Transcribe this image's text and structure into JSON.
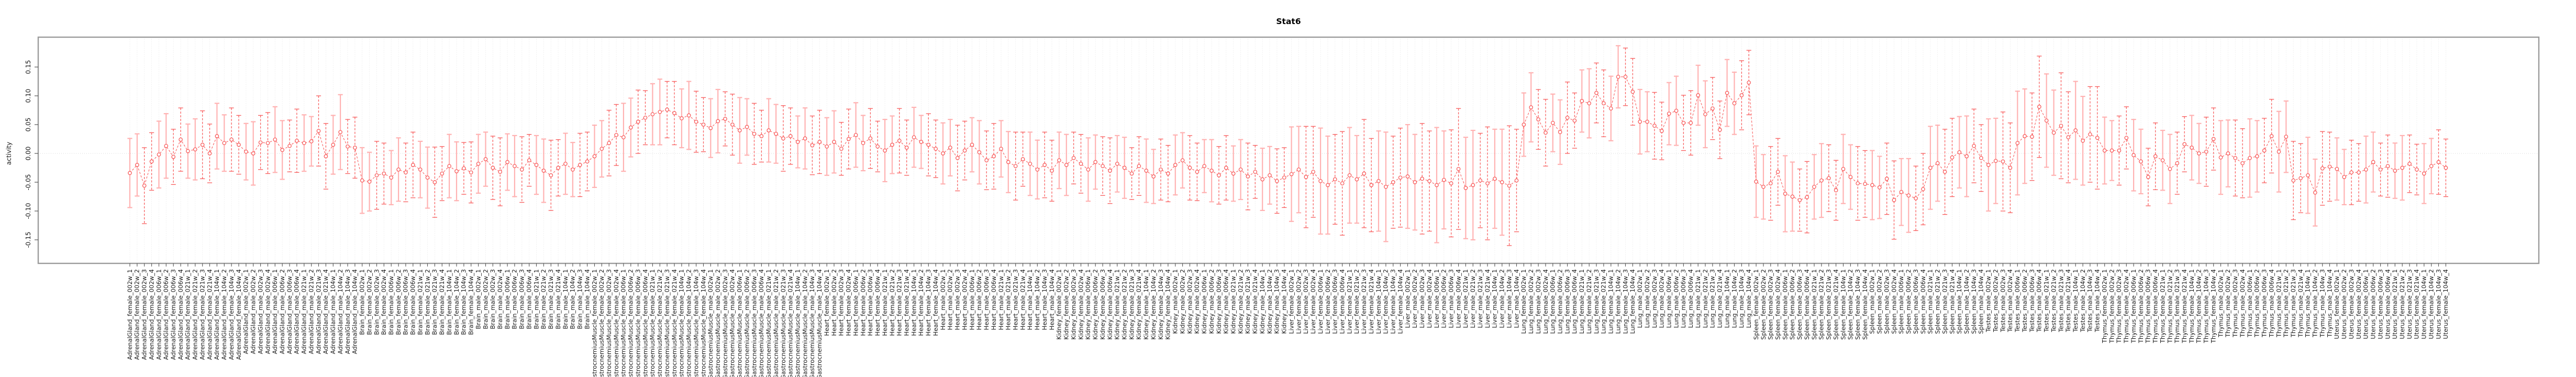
{
  "title": "Stat6",
  "chart_data": {
    "type": "line",
    "subtype": "errorbar-series",
    "title": "Stat6",
    "xlabel": "",
    "ylabel": "activity",
    "yticks": [
      0.15,
      0.1,
      0.05,
      0.0,
      -0.05,
      -0.1,
      -0.15
    ],
    "ylim": [
      -0.19,
      0.2
    ],
    "grid": "vertical-dotted-per-sample, dotted-zero-line",
    "legend_position": "none",
    "x_label_rotation": 90,
    "ages": [
      "002w",
      "006w",
      "021w",
      "104w"
    ],
    "replicates": [
      1,
      2,
      3,
      4
    ],
    "label_format": "{tissue}_{sex}_{age}_{replicate}",
    "bar_style_pattern": [
      "solid",
      "solid",
      "dashed",
      "dashed"
    ],
    "colors": {
      "point": "#f85c5c",
      "line": "#f85c5c",
      "bar_solid": "#ffb2b2",
      "bar_dashed": "#f85c5c",
      "grid": "#dedede",
      "zero_line": "#d0d0d0",
      "border": "#9b9b9b",
      "tick": "#555555",
      "text": "#1a1a1a"
    },
    "groups": [
      {
        "tissue": "AdrenalGland",
        "sex": "female",
        "means": [
          -0.034,
          -0.02,
          -0.056,
          -0.014,
          -0.002,
          0.013,
          -0.006,
          0.024,
          0.004,
          0.007,
          0.015,
          0.0,
          0.03,
          0.018,
          0.024,
          0.015
        ],
        "errs": [
          0.06,
          0.054,
          0.066,
          0.05,
          0.058,
          0.056,
          0.048,
          0.055,
          0.047,
          0.053,
          0.059,
          0.051,
          0.057,
          0.049,
          0.055,
          0.051
        ]
      },
      {
        "tissue": "AdrenalGland",
        "sex": "male",
        "means": [
          0.003,
          0.0,
          0.019,
          0.018,
          0.024,
          0.006,
          0.013,
          0.022,
          0.018,
          0.021,
          0.039,
          -0.005,
          0.015,
          0.037,
          0.012,
          0.01
        ],
        "errs": [
          0.049,
          0.055,
          0.047,
          0.053,
          0.057,
          0.051,
          0.045,
          0.055,
          0.049,
          0.043,
          0.061,
          0.057,
          0.051,
          0.065,
          0.047,
          0.053
        ]
      },
      {
        "tissue": "Brain",
        "sex": "female",
        "means": [
          -0.047,
          -0.049,
          -0.038,
          -0.035,
          -0.042,
          -0.028,
          -0.033,
          -0.02,
          -0.028,
          -0.042,
          -0.05,
          -0.035,
          -0.022,
          -0.031,
          -0.026,
          -0.033
        ],
        "errs": [
          0.057,
          0.051,
          0.059,
          0.053,
          0.047,
          0.055,
          0.051,
          0.057,
          0.049,
          0.053,
          0.061,
          0.047,
          0.055,
          0.051,
          0.045,
          0.053
        ]
      },
      {
        "tissue": "Brain",
        "sex": "male",
        "means": [
          -0.018,
          -0.01,
          -0.025,
          -0.032,
          -0.015,
          -0.022,
          -0.028,
          -0.012,
          -0.02,
          -0.03,
          -0.038,
          -0.025,
          -0.018,
          -0.028,
          -0.02,
          -0.014
        ],
        "errs": [
          0.051,
          0.047,
          0.055,
          0.059,
          0.049,
          0.053,
          0.057,
          0.045,
          0.051,
          0.055,
          0.061,
          0.049,
          0.053,
          0.047,
          0.055,
          0.051
        ]
      },
      {
        "tissue": "GastrocnemiusMuscle",
        "sex": "female",
        "means": [
          -0.005,
          0.008,
          0.018,
          0.032,
          0.028,
          0.045,
          0.055,
          0.062,
          0.068,
          0.072,
          0.076,
          0.07,
          0.061,
          0.066,
          0.055,
          0.05
        ],
        "errs": [
          0.054,
          0.049,
          0.057,
          0.053,
          0.059,
          0.051,
          0.055,
          0.047,
          0.053,
          0.057,
          0.049,
          0.055,
          0.051,
          0.059,
          0.053,
          0.047
        ]
      },
      {
        "tissue": "GastrocnemiusMuscle",
        "sex": "male",
        "means": [
          0.044,
          0.056,
          0.06,
          0.05,
          0.04,
          0.046,
          0.034,
          0.03,
          0.04,
          0.034,
          0.026,
          0.03,
          0.02,
          0.026,
          0.014,
          0.02
        ],
        "errs": [
          0.051,
          0.055,
          0.047,
          0.053,
          0.057,
          0.049,
          0.053,
          0.045,
          0.055,
          0.051,
          0.057,
          0.049,
          0.045,
          0.053,
          0.051,
          0.055
        ]
      },
      {
        "tissue": "Heart",
        "sex": "female",
        "means": [
          0.012,
          0.02,
          0.008,
          0.025,
          0.032,
          0.018,
          0.026,
          0.012,
          0.005,
          0.015,
          0.022,
          0.01,
          0.028,
          0.02,
          0.015,
          0.008
        ],
        "errs": [
          0.05,
          0.054,
          0.046,
          0.052,
          0.056,
          0.048,
          0.052,
          0.044,
          0.054,
          0.05,
          0.056,
          0.048,
          0.052,
          0.046,
          0.054,
          0.05
        ]
      },
      {
        "tissue": "Heart",
        "sex": "male",
        "means": [
          0.0,
          0.01,
          -0.008,
          0.005,
          0.015,
          0.002,
          -0.012,
          -0.005,
          0.008,
          -0.015,
          -0.022,
          -0.01,
          -0.018,
          -0.028,
          -0.02,
          -0.03
        ],
        "errs": [
          0.053,
          0.049,
          0.057,
          0.051,
          0.047,
          0.055,
          0.051,
          0.057,
          0.049,
          0.053,
          0.059,
          0.047,
          0.055,
          0.051,
          0.057,
          0.053
        ]
      },
      {
        "tissue": "Kidney",
        "sex": "female",
        "means": [
          -0.012,
          -0.02,
          -0.008,
          -0.018,
          -0.028,
          -0.015,
          -0.022,
          -0.03,
          -0.018,
          -0.025,
          -0.035,
          -0.022,
          -0.03,
          -0.04,
          -0.028,
          -0.035
        ],
        "errs": [
          0.049,
          0.053,
          0.045,
          0.051,
          0.055,
          0.047,
          0.051,
          0.057,
          0.049,
          0.053,
          0.045,
          0.051,
          0.055,
          0.047,
          0.053,
          0.049
        ]
      },
      {
        "tissue": "Kidney",
        "sex": "male",
        "means": [
          -0.02,
          -0.012,
          -0.025,
          -0.032,
          -0.022,
          -0.03,
          -0.038,
          -0.025,
          -0.035,
          -0.028,
          -0.04,
          -0.032,
          -0.045,
          -0.038,
          -0.048,
          -0.042
        ],
        "errs": [
          0.052,
          0.048,
          0.056,
          0.05,
          0.046,
          0.054,
          0.05,
          0.056,
          0.048,
          0.052,
          0.058,
          0.046,
          0.054,
          0.05,
          0.056,
          0.052
        ]
      },
      {
        "tissue": "Liver",
        "sex": "female",
        "means": [
          -0.036,
          -0.028,
          -0.041,
          -0.032,
          -0.048,
          -0.055,
          -0.045,
          -0.052,
          -0.038,
          -0.045,
          -0.035,
          -0.055,
          -0.048,
          -0.058,
          -0.05,
          -0.042
        ],
        "errs": [
          0.082,
          0.075,
          0.088,
          0.079,
          0.092,
          0.085,
          0.078,
          0.09,
          0.083,
          0.076,
          0.094,
          0.081,
          0.087,
          0.095,
          0.08,
          0.086
        ]
      },
      {
        "tissue": "Liver",
        "sex": "male",
        "means": [
          -0.04,
          -0.05,
          -0.044,
          -0.048,
          -0.055,
          -0.046,
          -0.052,
          -0.027,
          -0.06,
          -0.055,
          -0.047,
          -0.052,
          -0.044,
          -0.05,
          -0.056,
          -0.047
        ],
        "errs": [
          0.09,
          0.083,
          0.096,
          0.087,
          0.1,
          0.085,
          0.093,
          0.105,
          0.088,
          0.095,
          0.082,
          0.098,
          0.086,
          0.092,
          0.104,
          0.089
        ]
      },
      {
        "tissue": "Lung",
        "sex": "female",
        "means": [
          0.05,
          0.08,
          0.059,
          0.036,
          0.053,
          0.037,
          0.062,
          0.057,
          0.091,
          0.087,
          0.105,
          0.087,
          0.078,
          0.133,
          0.133,
          0.107
        ],
        "errs": [
          0.055,
          0.06,
          0.052,
          0.058,
          0.05,
          0.056,
          0.062,
          0.048,
          0.054,
          0.06,
          0.052,
          0.058,
          0.056,
          0.054,
          0.05,
          0.058
        ]
      },
      {
        "tissue": "Lung",
        "sex": "male",
        "means": [
          0.055,
          0.055,
          0.048,
          0.039,
          0.069,
          0.074,
          0.053,
          0.053,
          0.101,
          0.068,
          0.078,
          0.041,
          0.105,
          0.087,
          0.101,
          0.123
        ],
        "errs": [
          0.056,
          0.052,
          0.058,
          0.05,
          0.054,
          0.06,
          0.048,
          0.056,
          0.052,
          0.058,
          0.054,
          0.05,
          0.058,
          0.054,
          0.06,
          0.056
        ]
      },
      {
        "tissue": "Spleen",
        "sex": "female",
        "means": [
          -0.049,
          -0.058,
          -0.052,
          -0.032,
          -0.07,
          -0.075,
          -0.081,
          -0.076,
          -0.058,
          -0.047,
          -0.043,
          -0.064,
          -0.027,
          -0.041,
          -0.052,
          -0.053
        ],
        "errs": [
          0.062,
          0.056,
          0.064,
          0.058,
          0.066,
          0.06,
          0.054,
          0.062,
          0.056,
          0.064,
          0.058,
          0.052,
          0.06,
          0.056,
          0.064,
          0.058
        ]
      },
      {
        "tissue": "Spleen",
        "sex": "male",
        "means": [
          -0.055,
          -0.059,
          -0.044,
          -0.081,
          -0.067,
          -0.073,
          -0.078,
          -0.062,
          -0.025,
          -0.017,
          -0.032,
          -0.007,
          0.002,
          -0.005,
          0.013,
          -0.008
        ],
        "errs": [
          0.06,
          0.054,
          0.062,
          0.068,
          0.058,
          0.064,
          0.056,
          0.062,
          0.072,
          0.066,
          0.074,
          0.068,
          0.062,
          0.07,
          0.064,
          0.058
        ]
      },
      {
        "tissue": "Testes",
        "sex": "male",
        "means": [
          -0.02,
          -0.013,
          -0.014,
          -0.025,
          0.018,
          0.03,
          0.029,
          0.081,
          0.057,
          0.036,
          0.048,
          0.028,
          0.04,
          0.022,
          0.033,
          0.027
        ],
        "errs": [
          0.08,
          0.074,
          0.086,
          0.078,
          0.09,
          0.082,
          0.076,
          0.088,
          0.081,
          0.074,
          0.092,
          0.079,
          0.085,
          0.077,
          0.083,
          0.089
        ]
      },
      {
        "tissue": "Thymus",
        "sex": "female",
        "means": [
          0.005,
          0.005,
          0.005,
          0.027,
          -0.003,
          -0.014,
          -0.041,
          -0.005,
          -0.012,
          -0.027,
          -0.017,
          0.016,
          0.01,
          0.0,
          0.003,
          0.025
        ],
        "errs": [
          0.058,
          0.052,
          0.06,
          0.054,
          0.062,
          0.056,
          0.05,
          0.058,
          0.052,
          0.06,
          0.054,
          0.048,
          0.056,
          0.052,
          0.06,
          0.054
        ]
      },
      {
        "tissue": "Thymus",
        "sex": "male",
        "means": [
          -0.007,
          0.0,
          -0.008,
          -0.017,
          -0.008,
          -0.005,
          0.005,
          0.03,
          0.003,
          0.029,
          -0.047,
          -0.043,
          -0.038,
          -0.068,
          -0.026,
          -0.023
        ],
        "errs": [
          0.064,
          0.058,
          0.066,
          0.06,
          0.068,
          0.062,
          0.056,
          0.064,
          0.07,
          0.062,
          0.068,
          0.06,
          0.066,
          0.058,
          0.064,
          0.06
        ]
      },
      {
        "tissue": "Uterus",
        "sex": "female",
        "means": [
          -0.027,
          -0.041,
          -0.033,
          -0.033,
          -0.028,
          -0.015,
          -0.028,
          -0.022,
          -0.03,
          -0.025,
          -0.018,
          -0.028,
          -0.035,
          -0.022,
          -0.015,
          -0.025
        ],
        "errs": [
          0.054,
          0.048,
          0.056,
          0.05,
          0.058,
          0.052,
          0.046,
          0.054,
          0.048,
          0.056,
          0.05,
          0.044,
          0.052,
          0.048,
          0.056,
          0.05
        ]
      }
    ]
  }
}
